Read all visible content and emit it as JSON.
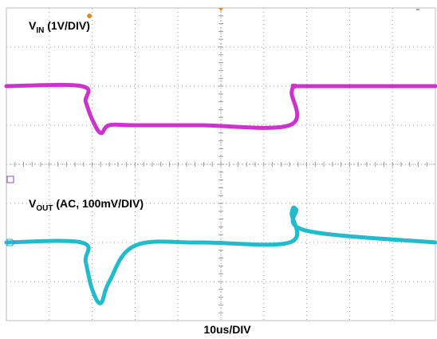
{
  "chart_data": {
    "type": "line",
    "title": "",
    "xlabel": "10us/DIV",
    "ylabel": "",
    "grid": true,
    "x_divisions": 10,
    "y_divisions": 8,
    "x_per_div": "10us",
    "x": [
      0,
      17.5,
      18.5,
      20.0,
      22.0,
      24.0,
      30.0,
      45.0,
      66.0,
      66.5,
      67.5,
      70.0,
      100.0
    ],
    "series": [
      {
        "name": "VIN",
        "label_main": "V",
        "label_sub": "IN",
        "label_suffix": " (1V/DIV)",
        "scale": "1V/DIV",
        "color": "#cc33cc",
        "values_div": [
          6.0,
          6.0,
          5.6,
          5.15,
          4.8,
          5.0,
          5.0,
          5.0,
          5.0,
          5.85,
          6.0,
          6.0,
          6.0
        ]
      },
      {
        "name": "VOUT",
        "label_main": "V",
        "label_sub": "OUT",
        "label_suffix": " (AC, 100mV/DIV)",
        "scale": "AC, 100mV/DIV",
        "color": "#22bbcc",
        "values_div": [
          2.0,
          2.0,
          1.5,
          0.8,
          0.45,
          1.0,
          1.92,
          2.0,
          2.0,
          2.75,
          2.85,
          2.3,
          2.0
        ]
      }
    ],
    "markers": {
      "trigger_color": "#e08a2a",
      "ref_marker_color": "#8855aa",
      "ch2_marker_color": "#22aacc"
    }
  }
}
